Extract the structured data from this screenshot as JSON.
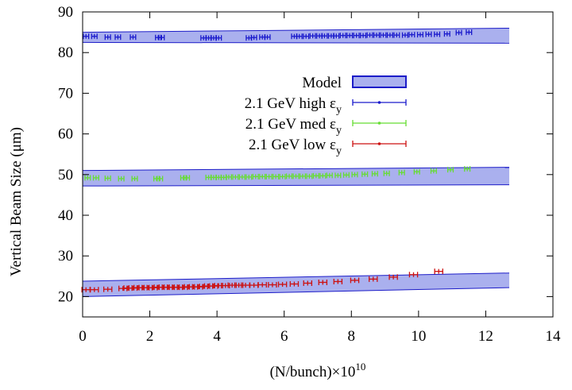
{
  "chart_data": {
    "type": "scatter",
    "xlabel": "(N/bunch)×10",
    "xlabel_exponent": "10",
    "ylabel": "Vertical Beam Size (μm)",
    "xlim": [
      0,
      14
    ],
    "ylim": [
      15,
      90
    ],
    "x_ticks": [
      "0",
      "2",
      "4",
      "6",
      "8",
      "10",
      "12",
      "14"
    ],
    "y_ticks": [
      "20",
      "30",
      "40",
      "50",
      "60",
      "70",
      "80",
      "90"
    ],
    "grid": false,
    "legend_position": "center",
    "model_band": {
      "name": "Model",
      "fill": "#aab0ee",
      "edge": "#1c1cc8",
      "bands": [
        {
          "x": [
            0,
            12.7
          ],
          "lower": [
            82.5,
            82.3
          ],
          "upper": [
            85.0,
            86.0
          ]
        },
        {
          "x": [
            0,
            12.7
          ],
          "lower": [
            47.2,
            47.5
          ],
          "upper": [
            51.0,
            51.8
          ]
        },
        {
          "x": [
            0,
            12.7
          ],
          "lower": [
            20.0,
            22.2
          ],
          "upper": [
            23.8,
            25.8
          ]
        }
      ]
    },
    "series": [
      {
        "name": "2.1 GeV high ε",
        "name_subscript": "y",
        "color": "#1a1acc",
        "x": [
          0.1,
          0.35,
          0.75,
          1.05,
          1.5,
          2.25,
          2.35,
          3.6,
          3.75,
          3.9,
          4.05,
          4.95,
          5.1,
          5.35,
          5.5,
          6.3,
          6.45,
          6.65,
          6.85,
          7.05,
          7.2,
          7.4,
          7.55,
          7.75,
          7.95,
          8.15,
          8.35,
          8.55,
          8.75,
          8.95,
          9.15,
          9.35,
          9.6,
          9.8,
          10.05,
          10.3,
          10.55,
          10.85,
          11.2,
          11.5
        ],
        "y": [
          84.0,
          84.0,
          83.8,
          83.8,
          83.8,
          83.7,
          83.7,
          83.6,
          83.6,
          83.6,
          83.6,
          83.6,
          83.7,
          83.8,
          83.8,
          84.0,
          84.0,
          84.0,
          84.1,
          84.1,
          84.1,
          84.1,
          84.1,
          84.2,
          84.2,
          84.2,
          84.2,
          84.3,
          84.3,
          84.3,
          84.3,
          84.3,
          84.3,
          84.4,
          84.4,
          84.5,
          84.5,
          84.6,
          84.9,
          85.0
        ],
        "xerr": 0.08
      },
      {
        "name": "2.1 GeV med ε",
        "name_subscript": "y",
        "color": "#66dd33",
        "x": [
          0.15,
          0.4,
          0.75,
          1.15,
          1.55,
          2.2,
          2.3,
          3.0,
          3.1,
          3.75,
          3.9,
          4.05,
          4.2,
          4.35,
          4.55,
          4.75,
          4.95,
          5.15,
          5.35,
          5.55,
          5.75,
          5.95,
          6.15,
          6.35,
          6.55,
          6.75,
          6.95,
          7.15,
          7.35,
          7.6,
          7.85,
          8.1,
          8.4,
          8.7,
          9.05,
          9.5,
          9.95,
          10.45,
          10.95,
          11.45
        ],
        "y": [
          49.2,
          49.2,
          49.1,
          49.0,
          49.0,
          49.0,
          49.0,
          49.2,
          49.2,
          49.3,
          49.3,
          49.3,
          49.3,
          49.4,
          49.4,
          49.4,
          49.4,
          49.5,
          49.5,
          49.5,
          49.5,
          49.5,
          49.6,
          49.6,
          49.6,
          49.6,
          49.7,
          49.7,
          49.8,
          49.8,
          49.9,
          50.0,
          50.1,
          50.2,
          50.3,
          50.5,
          50.7,
          50.9,
          51.2,
          51.4
        ],
        "xerr": 0.08
      },
      {
        "name": "2.1 GeV low ε",
        "name_subscript": "y",
        "color": "#cc1111",
        "x": [
          0.1,
          0.35,
          0.75,
          1.2,
          1.35,
          1.5,
          1.65,
          1.8,
          1.95,
          2.1,
          2.25,
          2.4,
          2.55,
          2.7,
          2.85,
          3.0,
          3.15,
          3.3,
          3.45,
          3.6,
          3.75,
          3.9,
          4.05,
          4.25,
          4.45,
          4.65,
          4.85,
          5.1,
          5.35,
          5.65,
          5.95,
          6.3,
          6.7,
          7.15,
          7.6,
          8.1,
          8.65,
          9.25,
          9.85,
          10.6
        ],
        "y": [
          21.7,
          21.7,
          21.8,
          22.0,
          22.1,
          22.1,
          22.2,
          22.2,
          22.2,
          22.2,
          22.3,
          22.3,
          22.3,
          22.3,
          22.3,
          22.3,
          22.4,
          22.4,
          22.4,
          22.5,
          22.6,
          22.6,
          22.7,
          22.7,
          22.8,
          22.8,
          22.8,
          22.8,
          22.9,
          22.9,
          23.0,
          23.1,
          23.3,
          23.5,
          23.7,
          24.0,
          24.3,
          24.8,
          25.4,
          26.2
        ],
        "xerr": 0.12
      }
    ]
  }
}
